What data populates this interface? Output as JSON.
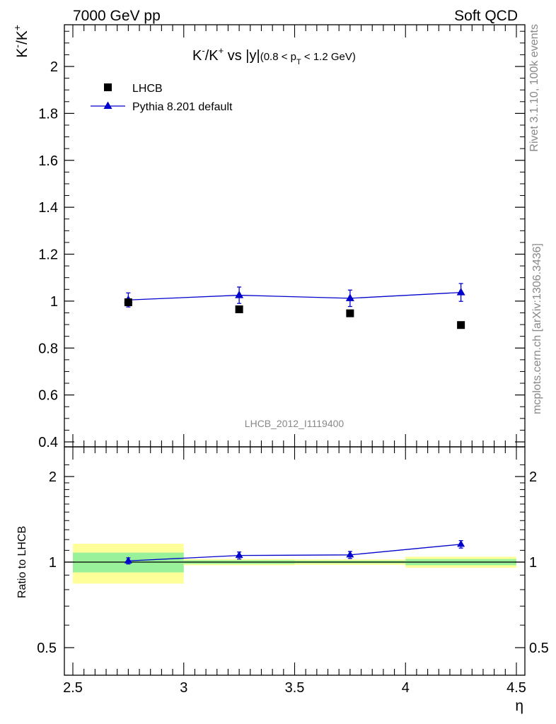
{
  "header": {
    "left": "7000 GeV pp",
    "right": "Soft QCD"
  },
  "side_labels": {
    "rivet": "Rivet 3.1.10,  100k events",
    "mcplots": "mcplots.cern.ch [arXiv:1306.3436]"
  },
  "watermark": "LHCB_2012_I1119400",
  "chart_data": [
    {
      "type": "scatter",
      "title_parts": {
        "main": "K",
        "sup1": "-",
        "slash": "/K",
        "sup2": "+",
        "rest": " vs |y|",
        "cut_open": "(0.8 < p",
        "cut_sub": "T",
        "cut_close": " < 1.2 GeV)"
      },
      "ylabel_parts": {
        "k1": "K",
        "s1": "-",
        "k2": "/K",
        "s2": "+"
      },
      "xlim": [
        2.5,
        4.5
      ],
      "ylim": [
        0.38,
        2.18
      ],
      "yticks": [
        0.4,
        0.6,
        0.8,
        1.0,
        1.2,
        1.4,
        1.6,
        1.8,
        2.0
      ],
      "ytick_labels": [
        "0.4",
        "0.6",
        "0.8",
        "1",
        "1.2",
        "1.4",
        "1.6",
        "1.8",
        "2"
      ],
      "legend": {
        "placement": "top-left",
        "entries": [
          "LHCB",
          "Pythia 8.201 default"
        ]
      },
      "series": [
        {
          "name": "LHCB",
          "marker": "square",
          "color": "#000000",
          "x": [
            2.75,
            3.25,
            3.75,
            4.25
          ],
          "y": [
            0.995,
            0.965,
            0.948,
            0.898
          ],
          "yerr": [
            0.015,
            0.0,
            0.0,
            0.0
          ]
        },
        {
          "name": "Pythia 8.201 default",
          "marker": "triangle",
          "color": "#0000cc",
          "x": [
            2.75,
            3.25,
            3.75,
            4.25
          ],
          "y": [
            1.005,
            1.025,
            1.012,
            1.037
          ],
          "yerr": [
            0.03,
            0.035,
            0.035,
            0.038
          ]
        }
      ]
    },
    {
      "type": "scatter",
      "ylabel": "Ratio to LHCB",
      "xlabel": "η",
      "xlim": [
        2.5,
        4.5
      ],
      "ylim": [
        0.38,
        2.3
      ],
      "yscale": "log",
      "yticks": [
        0.5,
        1,
        2
      ],
      "ytick_labels": [
        "0.5",
        "1",
        "2"
      ],
      "xticks": [
        2.5,
        3,
        3.5,
        4,
        4.5
      ],
      "xtick_labels": [
        "2.5",
        "3",
        "3.5",
        "4",
        "4.5"
      ],
      "bands": [
        {
          "x": [
            2.5,
            3.0
          ],
          "stat": [
            0.92,
            1.08
          ],
          "total": [
            0.84,
            1.16
          ]
        },
        {
          "x": [
            3.0,
            3.5
          ],
          "stat": [
            0.985,
            1.015
          ],
          "total": [
            0.975,
            1.025
          ]
        },
        {
          "x": [
            3.5,
            4.0
          ],
          "stat": [
            0.99,
            1.012
          ],
          "total": [
            0.978,
            1.022
          ]
        },
        {
          "x": [
            4.0,
            4.5
          ],
          "stat": [
            0.975,
            1.025
          ],
          "total": [
            0.955,
            1.045
          ]
        }
      ],
      "band_colors": {
        "stat": "#99f299",
        "total": "#ffff99"
      },
      "series": [
        {
          "name": "Pythia 8.201 default",
          "color": "#0000cc",
          "x": [
            2.75,
            3.25,
            3.75,
            4.25
          ],
          "y": [
            1.01,
            1.055,
            1.06,
            1.155
          ],
          "yerr": [
            0.025,
            0.03,
            0.03,
            0.035
          ]
        }
      ]
    }
  ]
}
